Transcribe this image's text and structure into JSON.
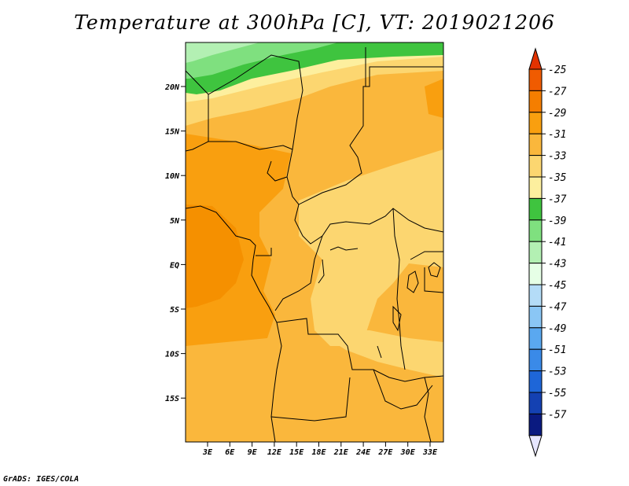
{
  "title": "Temperature at 300hPa [C], VT: 2019021206",
  "credit": "GrADS: IGES/COLA",
  "lat_ticks": [
    "20N",
    "15N",
    "10N",
    "5N",
    "EQ",
    "5S",
    "10S",
    "15S"
  ],
  "lon_ticks": [
    "3E",
    "6E",
    "9E",
    "12E",
    "15E",
    "18E",
    "21E",
    "24E",
    "27E",
    "30E",
    "33E"
  ],
  "colorbar": {
    "labels": [
      "-25",
      "-27",
      "-29",
      "-31",
      "-33",
      "-35",
      "-37",
      "-39",
      "-41",
      "-43",
      "-45",
      "-47",
      "-49",
      "-51",
      "-53",
      "-55",
      "-57"
    ],
    "colors": [
      "#f05b00",
      "#f57e00",
      "#f99f0f",
      "#fab73c",
      "#fcd670",
      "#fdef9e",
      "#3fc43f",
      "#7fe07f",
      "#b3f0b3",
      "#e6ffe6",
      "#b4dcf7",
      "#8ac6f5",
      "#5aa8f0",
      "#3a8ae8",
      "#1e66d8",
      "#1441b2",
      "#0a1a80"
    ],
    "top_color": "#e23200",
    "bottom_color": "#e6e6ff"
  },
  "colors": {
    "dominant": "#fab73c",
    "warm": "#f99f0f",
    "cool": "#fcd670",
    "coolest_yellow": "#fdef9e",
    "green": "#3fc43f",
    "light_green": "#b3f0b3"
  }
}
